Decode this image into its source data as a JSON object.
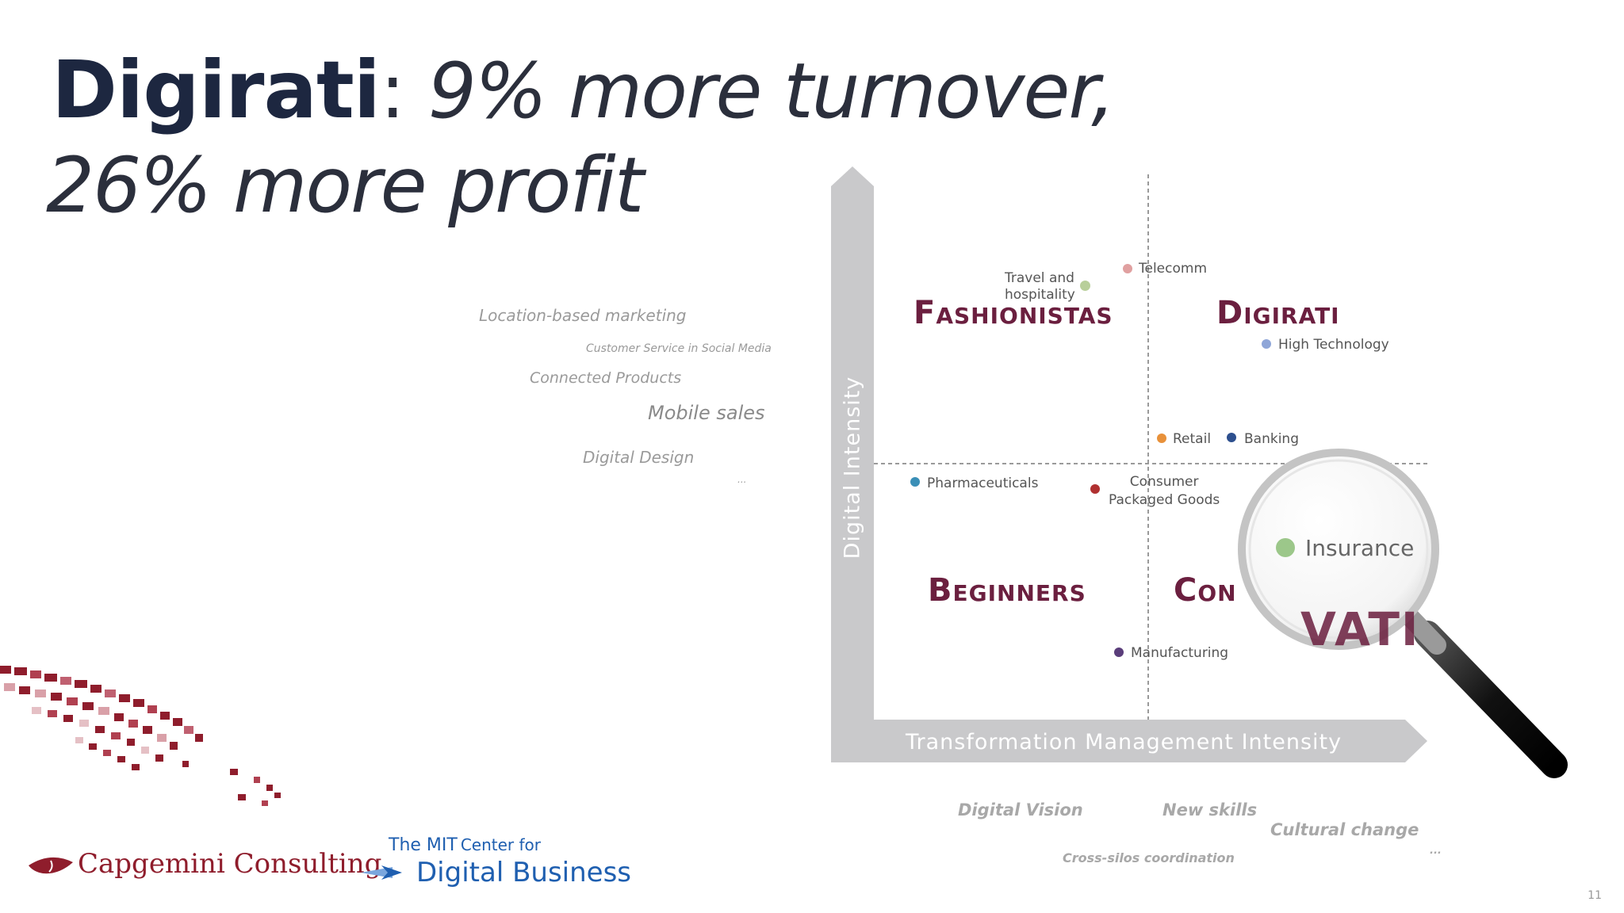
{
  "title": {
    "bold": "Digirati",
    "colon": ":",
    "line1_rest": " 9% more turnover,",
    "line2": "26% more profit"
  },
  "initiatives": [
    "Location-based marketing",
    "Customer Service in Social Media",
    "Connected Products",
    "Mobile sales",
    "Digital Design",
    "..."
  ],
  "matrix": {
    "y_axis_label": "Digital Intensity",
    "x_axis_label": "Transformation Management Intensity",
    "quadrants": {
      "top_left": "Fashionistas",
      "top_right": "Digirati",
      "bottom_left": "Beginners",
      "bottom_right": "Conservatives",
      "bottom_right_visible": "Con"
    },
    "points": [
      {
        "label": "Travel and hospitality",
        "line1": "Travel and",
        "line2": "hospitality",
        "color": "#b8cf9a"
      },
      {
        "label": "Telecomm",
        "color": "#e0a0a0"
      },
      {
        "label": "High Technology",
        "color": "#8fa6d8"
      },
      {
        "label": "Retail",
        "color": "#e8913a"
      },
      {
        "label": "Banking",
        "color": "#2d4f8e"
      },
      {
        "label": "Pharmaceuticals",
        "color": "#3a8fb7"
      },
      {
        "label": "Consumer Packaged Goods",
        "line1": "Consumer",
        "line2": "Packaged Goods",
        "color": "#b03030"
      },
      {
        "label": "Manufacturing",
        "color": "#5a3d7a"
      }
    ],
    "magnifier": {
      "label": "Insurance",
      "color": "#9cc78a",
      "text_fragment": "VATI"
    }
  },
  "bottom_words": [
    "Digital Vision",
    "New skills",
    "Cultural change",
    "Cross-silos coordination",
    "..."
  ],
  "logos": {
    "capgemini": "Capgemini Consulting",
    "mit_line1_prefix": "The MIT",
    "mit_line1_suffix": "Center for",
    "mit_line2": "Digital Business"
  },
  "slide_number": "11",
  "colors": {
    "title": "#1d2740",
    "quadrant_label": "#6b1f3f",
    "axis_gray": "#c9c9cb",
    "brand_red": "#8f1d2c"
  }
}
